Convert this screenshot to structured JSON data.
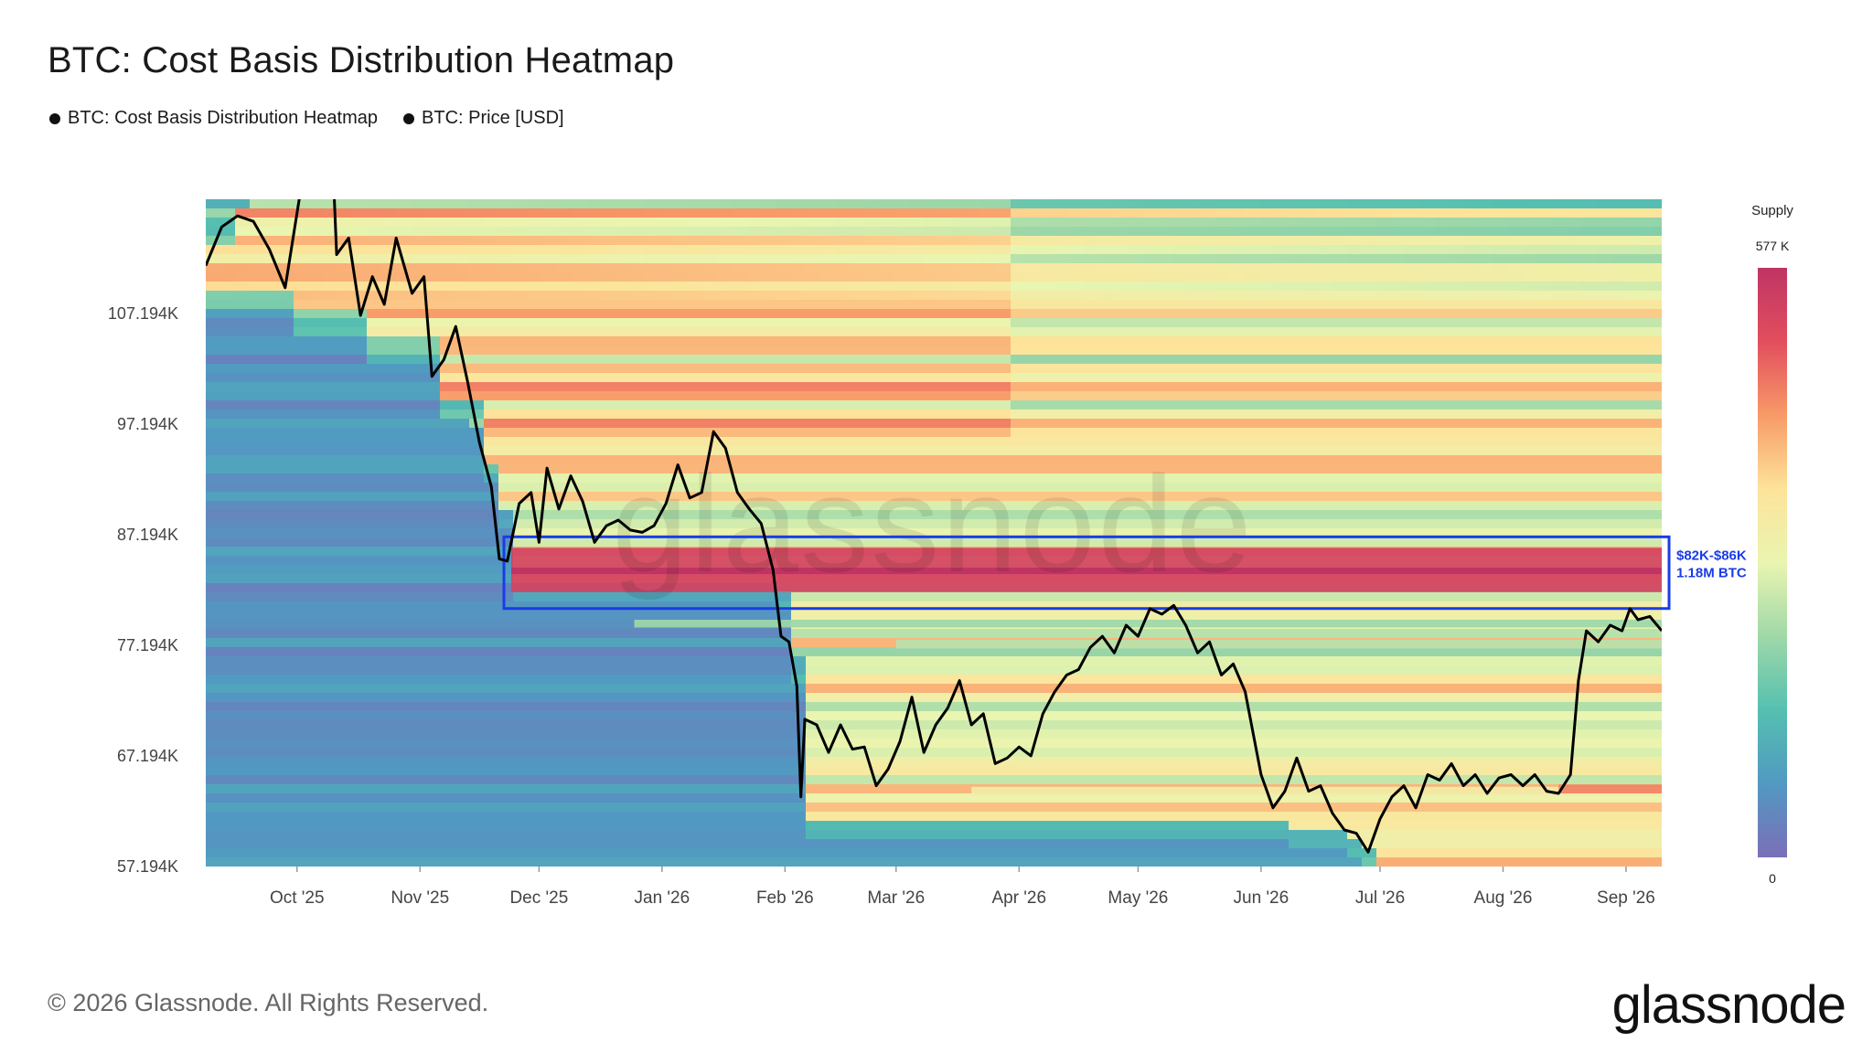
{
  "header": {
    "title": "BTC: Cost Basis Distribution Heatmap"
  },
  "legend": [
    {
      "label": "BTC: Cost Basis Distribution Heatmap",
      "color": "#111111"
    },
    {
      "label": "BTC: Price [USD]",
      "color": "#111111"
    }
  ],
  "footer": {
    "copyright": "© 2026 Glassnode. All Rights Reserved.",
    "brand": "glassnode",
    "watermark": "glassnode"
  },
  "chart_data": {
    "type": "heatmap",
    "title": "BTC: Cost Basis Distribution Heatmap",
    "x_ticks": [
      "Oct '25",
      "Nov '25",
      "Dec '25",
      "Jan '26",
      "Feb '26",
      "Mar '26",
      "Apr '26",
      "May '26",
      "Jun '26",
      "Jul '26",
      "Aug '26",
      "Sep '26"
    ],
    "y_ticks": [
      "57.194K",
      "67.194K",
      "77.194K",
      "87.194K",
      "97.194K",
      "107.194K"
    ],
    "ylim": [
      57194,
      117500
    ],
    "xlim": [
      "2025-09-08",
      "2026-09-10"
    ],
    "colorbar": {
      "title": "Supply",
      "max_label": "577 K",
      "min_label": "0",
      "colors": [
        "#7b6fb8",
        "#5199c2",
        "#55c0b0",
        "#9fd8a8",
        "#e9f5b0",
        "#fde39a",
        "#f89a68",
        "#e24e5d",
        "#bf3465"
      ]
    },
    "annotation": {
      "range_label": "$82K-$86K",
      "supply_label": "1.18M BTC",
      "y_low": 82000,
      "y_high": 86000,
      "x_start": "2025-11-24",
      "color": "#1a3ce6"
    },
    "series": [
      {
        "name": "BTC: Price [USD]",
        "points": [
          [
            "2025-09-08",
            111500
          ],
          [
            "2025-09-12",
            115000
          ],
          [
            "2025-09-16",
            116000
          ],
          [
            "2025-09-20",
            115500
          ],
          [
            "2025-09-24",
            113000
          ],
          [
            "2025-09-28",
            109500
          ],
          [
            "2025-10-02",
            118500
          ],
          [
            "2025-10-06",
            124500
          ],
          [
            "2025-10-08",
            122500
          ],
          [
            "2025-10-10",
            121000
          ],
          [
            "2025-10-11",
            112500
          ],
          [
            "2025-10-14",
            114000
          ],
          [
            "2025-10-17",
            107000
          ],
          [
            "2025-10-20",
            110500
          ],
          [
            "2025-10-23",
            108000
          ],
          [
            "2025-10-26",
            114000
          ],
          [
            "2025-10-30",
            109000
          ],
          [
            "2025-11-02",
            110500
          ],
          [
            "2025-11-04",
            101500
          ],
          [
            "2025-11-07",
            103000
          ],
          [
            "2025-11-10",
            106000
          ],
          [
            "2025-11-13",
            101000
          ],
          [
            "2025-11-16",
            95500
          ],
          [
            "2025-11-19",
            91500
          ],
          [
            "2025-11-21",
            85000
          ],
          [
            "2025-11-23",
            84800
          ],
          [
            "2025-11-26",
            90000
          ],
          [
            "2025-11-29",
            91000
          ],
          [
            "2025-12-01",
            86500
          ],
          [
            "2025-12-03",
            93200
          ],
          [
            "2025-12-06",
            89500
          ],
          [
            "2025-12-09",
            92500
          ],
          [
            "2025-12-12",
            90200
          ],
          [
            "2025-12-15",
            86500
          ],
          [
            "2025-12-18",
            88000
          ],
          [
            "2025-12-21",
            88500
          ],
          [
            "2025-12-24",
            87600
          ],
          [
            "2025-12-27",
            87400
          ],
          [
            "2025-12-30",
            88000
          ],
          [
            "2026-01-02",
            90000
          ],
          [
            "2026-01-05",
            93500
          ],
          [
            "2026-01-08",
            90500
          ],
          [
            "2026-01-11",
            91000
          ],
          [
            "2026-01-14",
            96500
          ],
          [
            "2026-01-17",
            95000
          ],
          [
            "2026-01-20",
            91000
          ],
          [
            "2026-01-23",
            89500
          ],
          [
            "2026-01-26",
            88200
          ],
          [
            "2026-01-29",
            84000
          ],
          [
            "2026-01-31",
            78000
          ],
          [
            "2026-02-02",
            77500
          ],
          [
            "2026-02-04",
            73500
          ],
          [
            "2026-02-05",
            63500
          ],
          [
            "2026-02-06",
            70500
          ],
          [
            "2026-02-09",
            70000
          ],
          [
            "2026-02-12",
            67500
          ],
          [
            "2026-02-15",
            70000
          ],
          [
            "2026-02-18",
            67800
          ],
          [
            "2026-02-21",
            68000
          ],
          [
            "2026-02-24",
            64500
          ],
          [
            "2026-02-27",
            66000
          ],
          [
            "2026-03-02",
            68500
          ],
          [
            "2026-03-05",
            72500
          ],
          [
            "2026-03-08",
            67500
          ],
          [
            "2026-03-11",
            70000
          ],
          [
            "2026-03-14",
            71500
          ],
          [
            "2026-03-17",
            74000
          ],
          [
            "2026-03-20",
            70000
          ],
          [
            "2026-03-23",
            71000
          ],
          [
            "2026-03-26",
            66500
          ],
          [
            "2026-03-29",
            67000
          ],
          [
            "2026-04-01",
            68000
          ],
          [
            "2026-04-04",
            67200
          ],
          [
            "2026-04-07",
            71000
          ],
          [
            "2026-04-10",
            73000
          ],
          [
            "2026-04-13",
            74500
          ],
          [
            "2026-04-16",
            75000
          ],
          [
            "2026-04-19",
            77000
          ],
          [
            "2026-04-22",
            78000
          ],
          [
            "2026-04-25",
            76500
          ],
          [
            "2026-04-28",
            79000
          ],
          [
            "2026-05-01",
            78000
          ],
          [
            "2026-05-04",
            80500
          ],
          [
            "2026-05-07",
            80000
          ],
          [
            "2026-05-10",
            80800
          ],
          [
            "2026-05-13",
            79000
          ],
          [
            "2026-05-16",
            76500
          ],
          [
            "2026-05-19",
            77500
          ],
          [
            "2026-05-22",
            74500
          ],
          [
            "2026-05-25",
            75500
          ],
          [
            "2026-05-28",
            73000
          ],
          [
            "2026-06-01",
            65500
          ],
          [
            "2026-06-04",
            62500
          ],
          [
            "2026-06-07",
            64000
          ],
          [
            "2026-06-10",
            67000
          ],
          [
            "2026-06-13",
            64000
          ],
          [
            "2026-06-16",
            64500
          ],
          [
            "2026-06-19",
            62000
          ],
          [
            "2026-06-22",
            60500
          ],
          [
            "2026-06-25",
            60200
          ],
          [
            "2026-06-28",
            58500
          ],
          [
            "2026-07-01",
            61500
          ],
          [
            "2026-07-04",
            63500
          ],
          [
            "2026-07-07",
            64500
          ],
          [
            "2026-07-10",
            62500
          ],
          [
            "2026-07-13",
            65500
          ],
          [
            "2026-07-16",
            65000
          ],
          [
            "2026-07-19",
            66500
          ],
          [
            "2026-07-22",
            64500
          ],
          [
            "2026-07-25",
            65500
          ],
          [
            "2026-07-28",
            63800
          ],
          [
            "2026-07-31",
            65200
          ],
          [
            "2026-08-03",
            65500
          ],
          [
            "2026-08-06",
            64500
          ],
          [
            "2026-08-09",
            65500
          ],
          [
            "2026-08-12",
            64000
          ],
          [
            "2026-08-15",
            63800
          ],
          [
            "2026-08-18",
            65500
          ],
          [
            "2026-08-20",
            74000
          ],
          [
            "2026-08-22",
            78500
          ],
          [
            "2026-08-25",
            77500
          ],
          [
            "2026-08-28",
            79000
          ],
          [
            "2026-08-31",
            78500
          ],
          [
            "2026-09-02",
            80500
          ],
          [
            "2026-09-04",
            79500
          ],
          [
            "2026-09-07",
            79800
          ],
          [
            "2026-09-10",
            78500
          ]
        ]
      }
    ],
    "heatmap_bands": [
      {
        "y_low": 82000,
        "y_high": 86000,
        "x_start": "2025-11-24",
        "intensity": 1.0
      },
      {
        "y_low": 63600,
        "y_high": 64400,
        "x_start": "2026-03-20",
        "intensity": 0.6
      },
      {
        "y_low": 76900,
        "y_high": 77700,
        "x_start": "2026-03-01",
        "intensity": 0.45
      },
      {
        "y_low": 78800,
        "y_high": 79500,
        "x_start": "2025-12-25",
        "intensity": 0.4
      },
      {
        "y_low": 63800,
        "y_high": 64600,
        "x_start": "2026-08-15",
        "intensity": 0.85
      }
    ]
  }
}
